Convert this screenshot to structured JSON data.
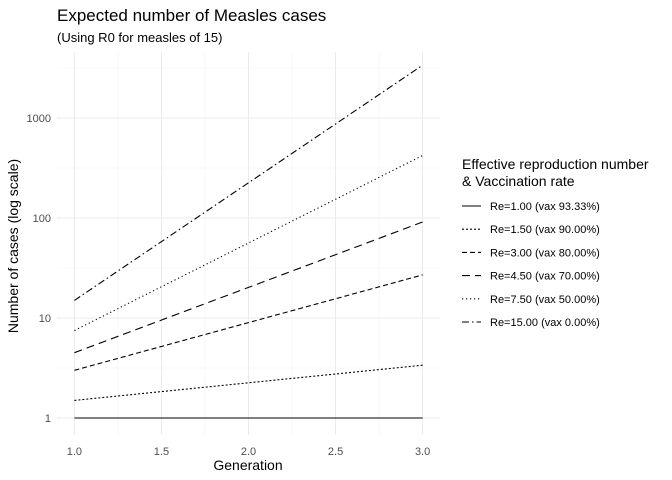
{
  "chart_data": {
    "type": "line",
    "title": "Expected number of Measles cases",
    "subtitle": "(Using R0 for measles of 15)",
    "xlabel": "Generation",
    "ylabel": "Number of cases (log scale)",
    "x": [
      1.0,
      2.0,
      3.0
    ],
    "x_ticks": [
      "1.0",
      "1.5",
      "2.0",
      "2.5",
      "3.0"
    ],
    "x_tick_values": [
      1.0,
      1.5,
      2.0,
      2.5,
      3.0
    ],
    "y_ticks": [
      "1",
      "10",
      "100",
      "1000"
    ],
    "y_tick_values": [
      1,
      10,
      100,
      1000
    ],
    "xlim": [
      1.0,
      3.0
    ],
    "ylim": [
      1,
      3375
    ],
    "y_scale": "log",
    "grid": true,
    "legend_placement": "right",
    "legend_title_lines": [
      "Effective reproduction number",
      "& Vaccination rate"
    ],
    "series": [
      {
        "name": "Re=1.00 (vax 93.33%)",
        "dash": "solid",
        "values": [
          1,
          1,
          1
        ]
      },
      {
        "name": "Re=1.50 (vax 90.00%)",
        "dash": "dotted-short",
        "values": [
          1.5,
          2.25,
          3.375
        ]
      },
      {
        "name": "Re=3.00 (vax 80.00%)",
        "dash": "dashed",
        "values": [
          3,
          9,
          27
        ]
      },
      {
        "name": "Re=4.50 (vax 70.00%)",
        "dash": "long-dashed",
        "values": [
          4.5,
          20.25,
          91.125
        ]
      },
      {
        "name": "Re=7.50 (vax 50.00%)",
        "dash": "dotted",
        "values": [
          7.5,
          56.25,
          421.875
        ]
      },
      {
        "name": "Re=15.00 (vax 0.00%)",
        "dash": "dash-dot",
        "values": [
          15,
          225,
          3375
        ]
      }
    ]
  }
}
